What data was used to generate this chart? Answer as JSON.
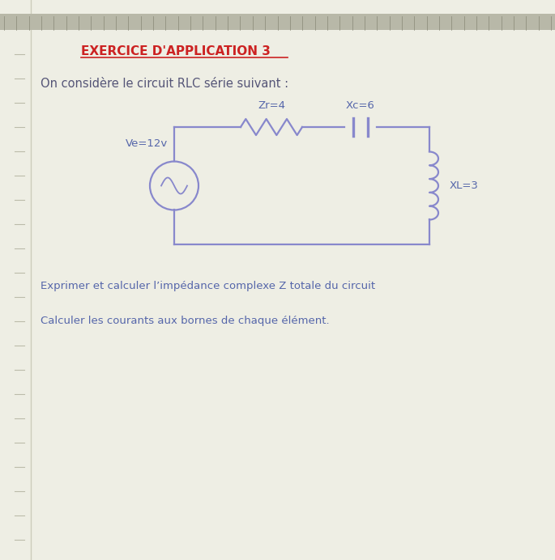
{
  "title": "EXERCICE D'APPLICATION 3",
  "subtitle": "On considère le circuit RLC série suivant :",
  "question1": "Exprimer et calculer l’impédance complexe Z totale du circuit",
  "question2": "Calculer les courants aux bornes de chaque élément.",
  "Ve_label": "Ve=12v",
  "Zr_label": "Zr=4",
  "Xc_label": "Xc=6",
  "XL_label": "XL=3",
  "circuit_color": "#8888cc",
  "title_color": "#cc2222",
  "text_color": "#5566aa",
  "bg_color": "#eeeee4",
  "ruler_color": "#aaaaaa",
  "margin_color": "#ddddcc"
}
